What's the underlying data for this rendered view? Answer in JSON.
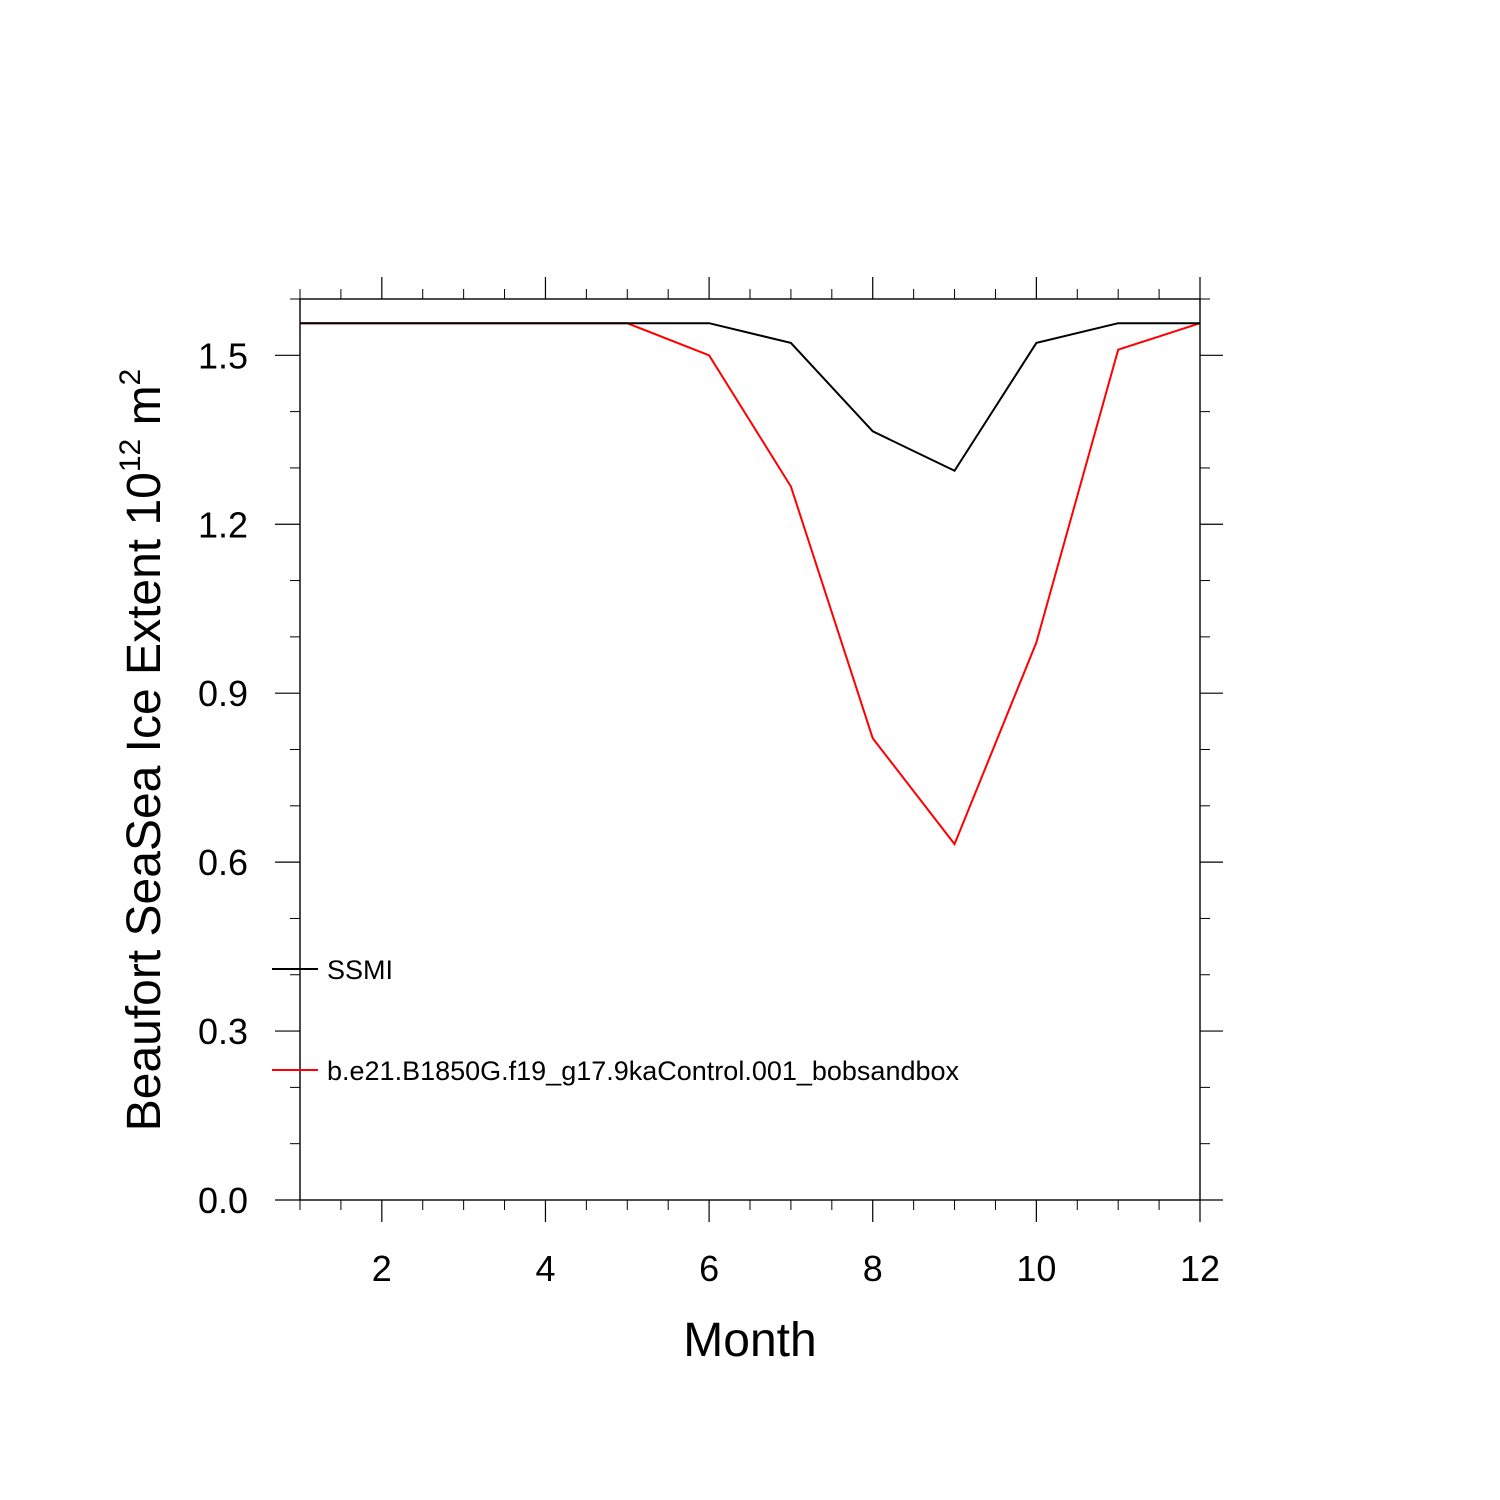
{
  "chart_data": {
    "type": "line",
    "title": "",
    "xlabel": "Month",
    "ylabel": {
      "text": "Beaufort SeaSea Ice Extent 10",
      "superscript": "12",
      "unit": " m",
      "unit_superscript": "2"
    },
    "xlim": [
      1,
      12
    ],
    "ylim": [
      0.0,
      1.6
    ],
    "x": [
      1,
      2,
      3,
      4,
      5,
      6,
      7,
      8,
      9,
      10,
      11,
      12
    ],
    "x_ticks": [
      2,
      4,
      6,
      8,
      10,
      12
    ],
    "x_tick_labels": [
      "2",
      "4",
      "6",
      "8",
      "10",
      "12"
    ],
    "y_ticks": [
      0.0,
      0.3,
      0.6,
      0.9,
      1.2,
      1.5
    ],
    "y_tick_labels": [
      "0.0",
      "0.3",
      "0.6",
      "0.9",
      "1.2",
      "1.5"
    ],
    "grid": false,
    "legend_position": "bottom-left inside",
    "series": [
      {
        "name": "SSMI",
        "color": "#000000",
        "values": [
          1.557,
          1.557,
          1.557,
          1.557,
          1.557,
          1.557,
          1.522,
          1.365,
          1.295,
          1.522,
          1.557,
          1.557
        ]
      },
      {
        "name": "b.e21.B1850G.f19_g17.9kaControl.001_bobsandbox",
        "color": "#ff0000",
        "values": [
          1.557,
          1.557,
          1.557,
          1.557,
          1.557,
          1.5,
          1.267,
          0.82,
          0.632,
          0.99,
          1.51,
          1.557
        ]
      }
    ]
  }
}
